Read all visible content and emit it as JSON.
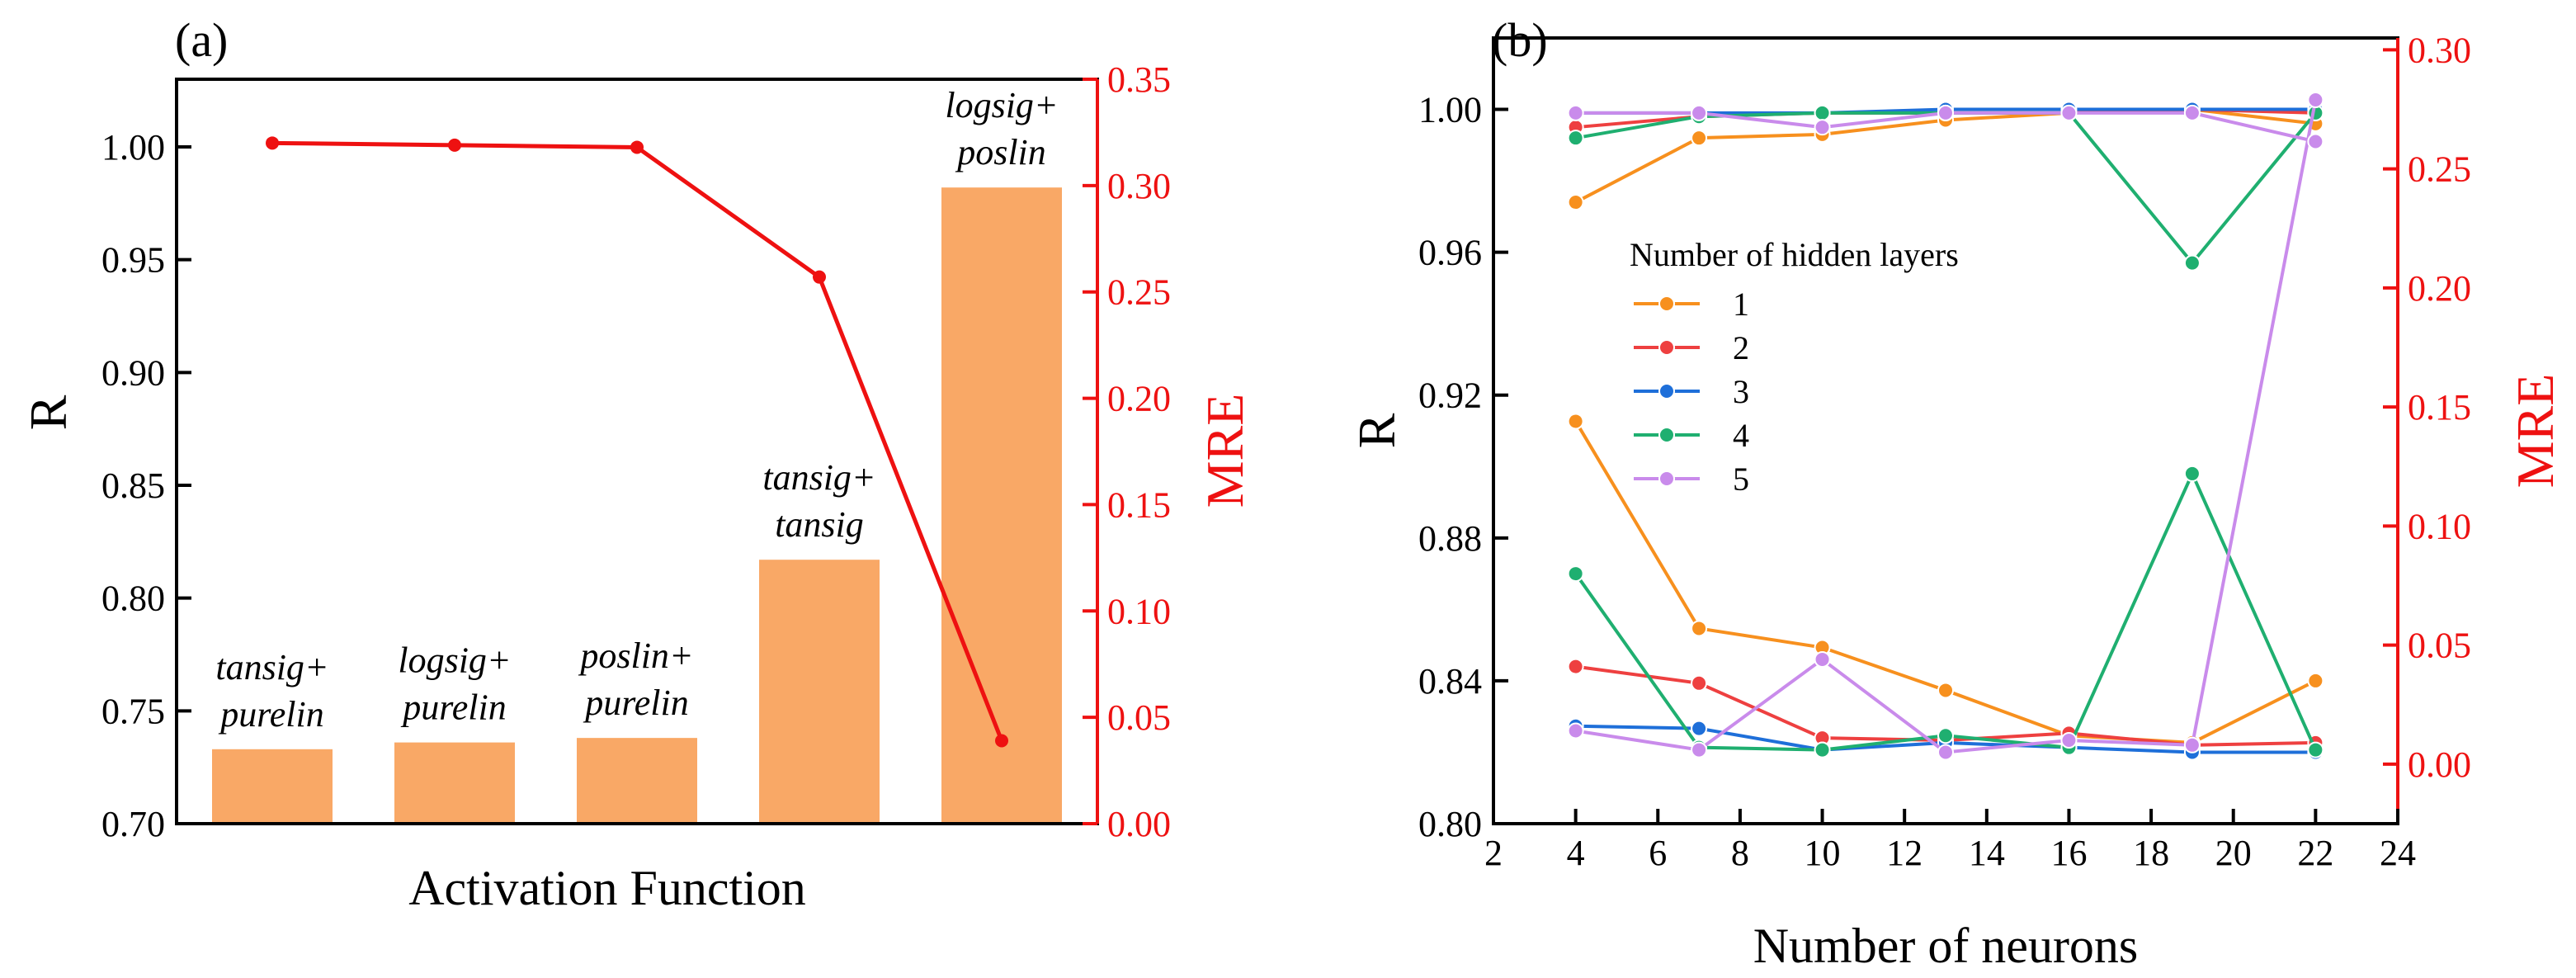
{
  "chart_data": [
    {
      "panel_label": "(a)",
      "type": "bar",
      "xlabel": "Activation Function",
      "ylabel": "R",
      "y2label": "MRE",
      "ylim": [
        0.7,
        1.03
      ],
      "y2lim": [
        0.0,
        0.35
      ],
      "yticks": [
        "0.70",
        "0.75",
        "0.80",
        "0.85",
        "0.90",
        "0.95",
        "1.00"
      ],
      "y2ticks": [
        "0.00",
        "0.05",
        "0.10",
        "0.15",
        "0.20",
        "0.25",
        "0.30",
        "0.35"
      ],
      "categories": [
        {
          "line1": "tansig+",
          "line2": "purelin"
        },
        {
          "line1": "logsig+",
          "line2": "purelin"
        },
        {
          "line1": "poslin+",
          "line2": "purelin"
        },
        {
          "line1": "tansig+",
          "line2": "tansig"
        },
        {
          "line1": "logsig+",
          "line2": "poslin"
        }
      ],
      "bar_values_R": [
        0.733,
        0.736,
        0.738,
        0.817,
        0.982
      ],
      "line_values_MRE": [
        0.32,
        0.319,
        0.318,
        0.257,
        0.039
      ],
      "bar_color": "#F9A866",
      "line_color": "#EE1111"
    },
    {
      "panel_label": "(b)",
      "type": "line",
      "xlabel": "Number of neurons",
      "ylabel": "R",
      "y2label": "MRE",
      "xlim": [
        2,
        24
      ],
      "ylim": [
        0.8,
        1.02
      ],
      "y2lim": [
        -0.025,
        0.305
      ],
      "xticks": [
        "2",
        "4",
        "6",
        "8",
        "10",
        "12",
        "14",
        "16",
        "18",
        "20",
        "22",
        "24"
      ],
      "yticks": [
        "0.80",
        "0.84",
        "0.88",
        "0.92",
        "0.96",
        "1.00"
      ],
      "y2ticks": [
        "0.00",
        "0.05",
        "0.10",
        "0.15",
        "0.20",
        "0.25",
        "0.30"
      ],
      "x": [
        4,
        7,
        10,
        13,
        16,
        19,
        22
      ],
      "legend_title": "Number of hidden layers",
      "series": [
        {
          "name": "1",
          "color": "#F7901E",
          "R": [
            0.974,
            0.992,
            0.993,
            0.997,
            0.999,
            1.0,
            0.996
          ],
          "MRE": [
            0.144,
            0.057,
            0.049,
            0.031,
            0.012,
            0.009,
            0.035
          ]
        },
        {
          "name": "2",
          "color": "#EE4040",
          "R": [
            0.995,
            0.998,
            0.999,
            0.999,
            0.999,
            1.0,
            0.999
          ],
          "MRE": [
            0.041,
            0.034,
            0.011,
            0.01,
            0.013,
            0.008,
            0.009
          ]
        },
        {
          "name": "3",
          "color": "#1E6FD9",
          "R": [
            0.999,
            0.999,
            0.999,
            1.0,
            1.0,
            1.0,
            1.0
          ],
          "MRE": [
            0.016,
            0.015,
            0.006,
            0.009,
            0.007,
            0.005,
            0.005
          ]
        },
        {
          "name": "4",
          "color": "#1FAF70",
          "R": [
            0.992,
            0.998,
            0.999,
            0.999,
            0.999,
            0.957,
            0.999
          ],
          "MRE": [
            0.08,
            0.007,
            0.006,
            0.012,
            0.007,
            0.122,
            0.006
          ]
        },
        {
          "name": "5",
          "color": "#C98BEB",
          "R": [
            0.999,
            0.999,
            0.995,
            0.999,
            0.999,
            0.999,
            0.991
          ],
          "MRE": [
            0.014,
            0.006,
            0.044,
            0.005,
            0.01,
            0.008,
            0.279
          ]
        }
      ]
    }
  ]
}
